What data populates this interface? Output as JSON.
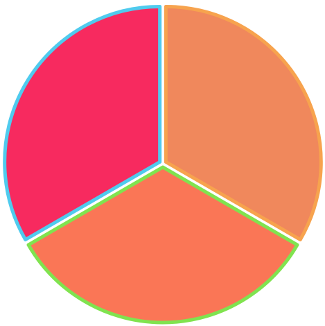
{
  "chart_data": {
    "type": "pie",
    "values": [
      33.3,
      33.3,
      33.3
    ],
    "colors": [
      "#f0885c",
      "#fa7656",
      "#f72a5f"
    ],
    "stroke_colors": [
      "#f7a34e",
      "#80e34f",
      "#4fcbee"
    ]
  }
}
